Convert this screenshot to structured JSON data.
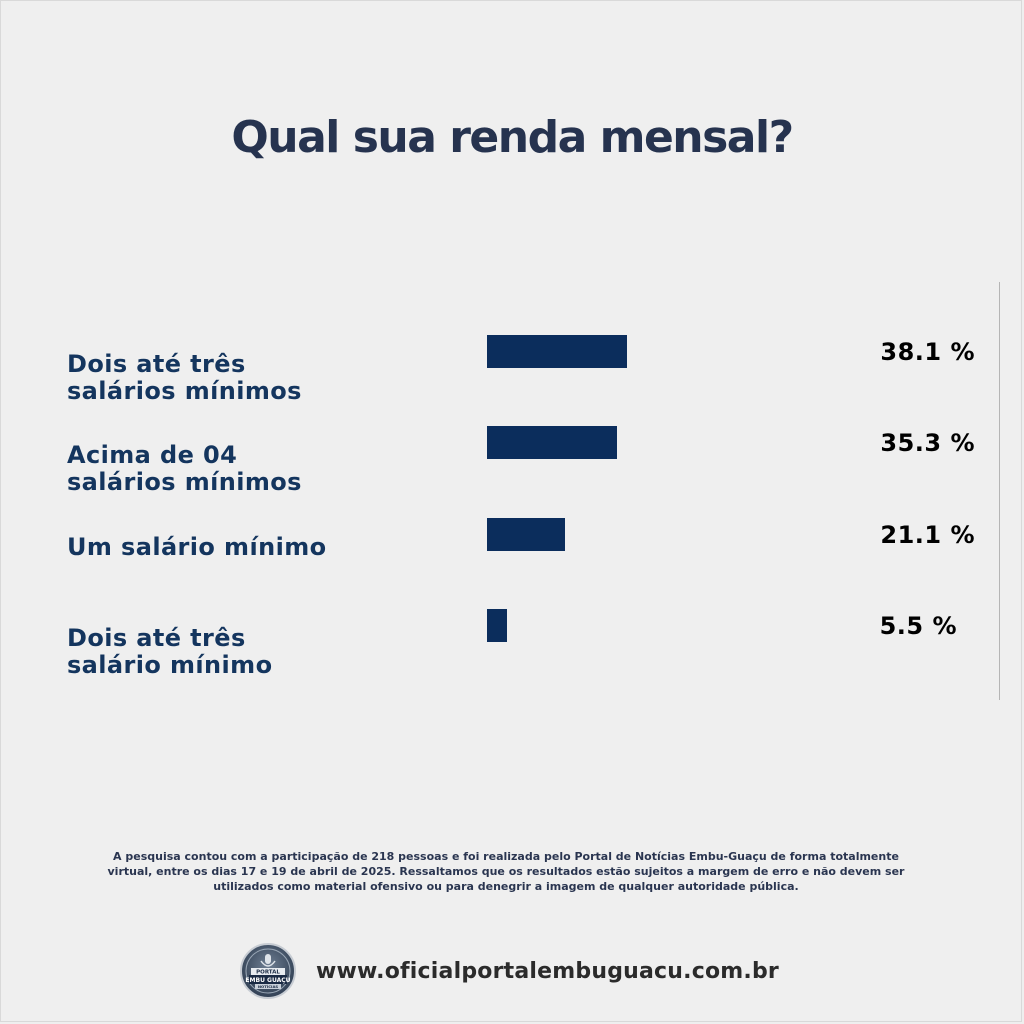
{
  "title": "Qual sua renda mensal?",
  "chart_data": {
    "type": "bar",
    "orientation": "horizontal",
    "categories": [
      "Dois até três\nsalários mínimos",
      "Acima de 04\nsalários mínimos",
      "Um salário mínimo",
      "Dois até três\nsalário mínimo"
    ],
    "values": [
      38.1,
      35.3,
      21.1,
      5.5
    ],
    "value_labels": [
      "38.1 %",
      "35.3 %",
      "21.1 %",
      "5.5 %"
    ],
    "title": "Qual sua renda mensal?",
    "xlabel": "",
    "ylabel": "",
    "xlim": [
      0,
      100
    ],
    "grid": false,
    "bar_color": "#0b2d5c"
  },
  "footnote": "A pesquisa contou com a participação de 218 pessoas e foi realizada pelo Portal de Notícias Embu-Guaçu de forma totalmente virtual, entre os dias 17 e 19 de abril de 2025. Ressaltamos que os resultados estão sujeitos a margem de erro e não devem ser utilizados como material ofensivo ou para denegrir a imagem de qualquer autoridade pública.",
  "footer": {
    "logo_line1": "PORTAL",
    "logo_line2": "EMBU GUAÇU",
    "logo_line3": "NOTÍCIAS",
    "url": "www.oficialportalembuguacu.com.br"
  },
  "colors": {
    "background": "#efefef",
    "title": "#26334f",
    "category_text": "#14355e",
    "bar": "#0b2d5c",
    "value_text": "#000000"
  }
}
